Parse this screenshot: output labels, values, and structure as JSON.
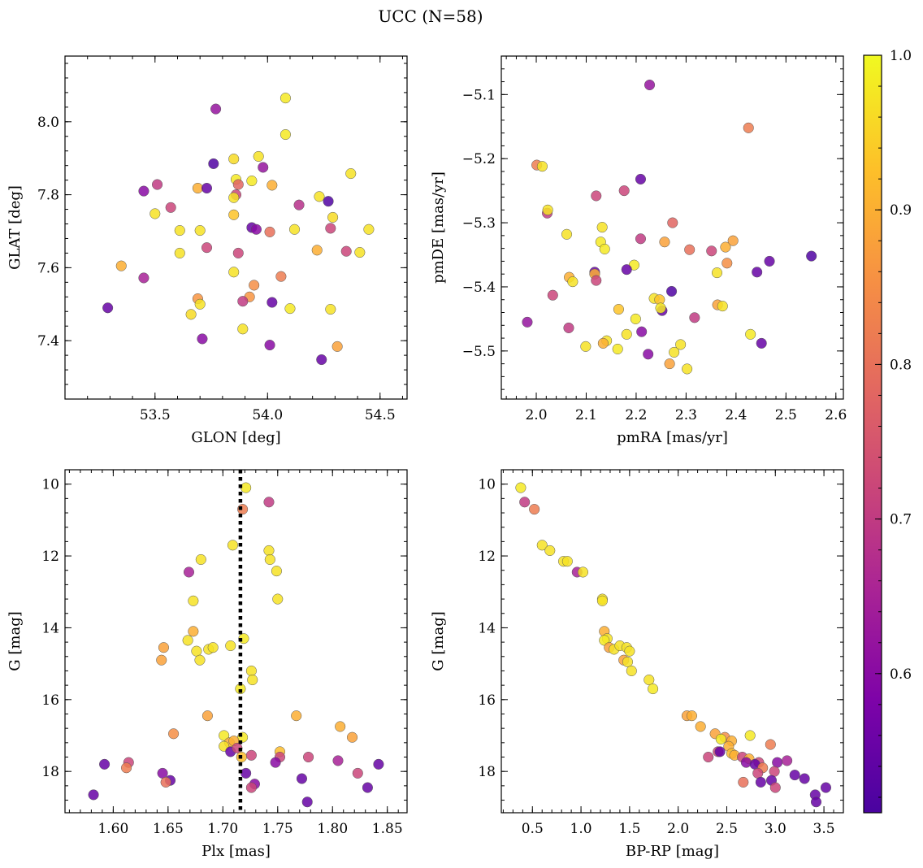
{
  "figure": {
    "suptitle": "UCC (N=58)"
  },
  "chart_data": [
    {
      "type": "scatter",
      "id": "sky",
      "xlabel": "GLON [deg]",
      "ylabel": "GLAT [deg]",
      "xlim": [
        53.1,
        54.62
      ],
      "ylim": [
        7.24,
        8.18
      ],
      "xticks": [
        53.5,
        54.0,
        54.5
      ],
      "xtick_labels": [
        "53.5",
        "54.0",
        "54.5"
      ],
      "xminor": 0.1,
      "yticks": [
        7.4,
        7.6,
        7.8,
        8.0
      ],
      "ytick_labels": [
        "7.4",
        "7.6",
        "7.8",
        "8.0"
      ],
      "yminor": 0.04,
      "points": [
        [
          53.77,
          8.035,
          0.62
        ],
        [
          54.08,
          8.065,
          0.98
        ],
        [
          54.08,
          7.965,
          0.98
        ],
        [
          53.96,
          7.905,
          0.97
        ],
        [
          53.85,
          7.898,
          0.96
        ],
        [
          53.76,
          7.885,
          0.52
        ],
        [
          53.98,
          7.875,
          0.62
        ],
        [
          54.37,
          7.858,
          0.97
        ],
        [
          53.86,
          7.842,
          0.98
        ],
        [
          53.93,
          7.838,
          0.98
        ],
        [
          53.51,
          7.828,
          0.7
        ],
        [
          53.87,
          7.828,
          0.78
        ],
        [
          54.02,
          7.826,
          0.9
        ],
        [
          53.69,
          7.818,
          0.9
        ],
        [
          53.73,
          7.818,
          0.55
        ],
        [
          53.45,
          7.81,
          0.6
        ],
        [
          53.86,
          7.8,
          0.72
        ],
        [
          53.85,
          7.792,
          0.97
        ],
        [
          54.23,
          7.795,
          0.97
        ],
        [
          54.27,
          7.782,
          0.52
        ],
        [
          54.14,
          7.772,
          0.68
        ],
        [
          53.57,
          7.765,
          0.72
        ],
        [
          53.5,
          7.748,
          0.97
        ],
        [
          53.85,
          7.745,
          0.93
        ],
        [
          54.29,
          7.738,
          0.96
        ],
        [
          53.93,
          7.71,
          0.55
        ],
        [
          53.95,
          7.705,
          0.6
        ],
        [
          53.61,
          7.702,
          0.97
        ],
        [
          53.7,
          7.702,
          0.97
        ],
        [
          54.12,
          7.705,
          0.97
        ],
        [
          54.28,
          7.708,
          0.72
        ],
        [
          54.45,
          7.705,
          0.97
        ],
        [
          54.01,
          7.698,
          0.8
        ],
        [
          53.73,
          7.655,
          0.72
        ],
        [
          54.22,
          7.648,
          0.9
        ],
        [
          54.35,
          7.645,
          0.72
        ],
        [
          54.41,
          7.642,
          0.97
        ],
        [
          53.61,
          7.64,
          0.97
        ],
        [
          53.87,
          7.64,
          0.72
        ],
        [
          53.35,
          7.605,
          0.9
        ],
        [
          53.85,
          7.588,
          0.97
        ],
        [
          54.06,
          7.576,
          0.82
        ],
        [
          53.45,
          7.572,
          0.65
        ],
        [
          53.94,
          7.552,
          0.85
        ],
        [
          53.92,
          7.52,
          0.86
        ],
        [
          53.69,
          7.515,
          0.86
        ],
        [
          53.89,
          7.508,
          0.7
        ],
        [
          54.02,
          7.505,
          0.55
        ],
        [
          53.7,
          7.5,
          0.97
        ],
        [
          53.29,
          7.49,
          0.55
        ],
        [
          54.1,
          7.488,
          0.98
        ],
        [
          54.28,
          7.486,
          0.97
        ],
        [
          53.66,
          7.472,
          0.96
        ],
        [
          53.89,
          7.432,
          0.97
        ],
        [
          53.71,
          7.405,
          0.6
        ],
        [
          54.01,
          7.388,
          0.6
        ],
        [
          54.31,
          7.384,
          0.88
        ],
        [
          54.24,
          7.348,
          0.55
        ]
      ]
    },
    {
      "type": "scatter",
      "id": "pm",
      "xlabel": "pmRA [mas/yr]",
      "ylabel": "pmDE [mas/yr]",
      "xlim": [
        1.93,
        2.615
      ],
      "ylim": [
        -5.575,
        -5.04
      ],
      "xticks": [
        2.0,
        2.1,
        2.2,
        2.3,
        2.4,
        2.5,
        2.6
      ],
      "xtick_labels": [
        "2.0",
        "2.1",
        "2.2",
        "2.3",
        "2.4",
        "2.5",
        "2.6"
      ],
      "xminor": 0.02,
      "yticks": [
        -5.5,
        -5.4,
        -5.3,
        -5.2,
        -5.1
      ],
      "ytick_labels": [
        "−5.5",
        "−5.4",
        "−5.3",
        "−5.2",
        "−5.1"
      ],
      "yminor": 0.02,
      "points": [
        [
          2.227,
          -5.085,
          0.62
        ],
        [
          2.425,
          -5.152,
          0.82
        ],
        [
          2.001,
          -5.21,
          0.82
        ],
        [
          2.012,
          -5.212,
          0.97
        ],
        [
          2.209,
          -5.232,
          0.55
        ],
        [
          2.12,
          -5.258,
          0.72
        ],
        [
          2.176,
          -5.25,
          0.72
        ],
        [
          2.022,
          -5.285,
          0.7
        ],
        [
          2.023,
          -5.28,
          0.97
        ],
        [
          2.273,
          -5.3,
          0.78
        ],
        [
          2.132,
          -5.307,
          0.97
        ],
        [
          2.061,
          -5.318,
          0.97
        ],
        [
          2.209,
          -5.325,
          0.7
        ],
        [
          2.257,
          -5.33,
          0.88
        ],
        [
          2.394,
          -5.328,
          0.88
        ],
        [
          2.129,
          -5.33,
          0.98
        ],
        [
          2.137,
          -5.341,
          0.98
        ],
        [
          2.307,
          -5.342,
          0.8
        ],
        [
          2.351,
          -5.344,
          0.72
        ],
        [
          2.379,
          -5.338,
          0.9
        ],
        [
          2.551,
          -5.352,
          0.52
        ],
        [
          2.467,
          -5.36,
          0.55
        ],
        [
          2.382,
          -5.363,
          0.85
        ],
        [
          2.196,
          -5.366,
          0.98
        ],
        [
          2.181,
          -5.373,
          0.55
        ],
        [
          2.117,
          -5.377,
          0.55
        ],
        [
          2.117,
          -5.38,
          0.9
        ],
        [
          2.362,
          -5.378,
          0.97
        ],
        [
          2.442,
          -5.377,
          0.55
        ],
        [
          2.066,
          -5.385,
          0.9
        ],
        [
          2.073,
          -5.392,
          0.97
        ],
        [
          2.12,
          -5.39,
          0.72
        ],
        [
          2.271,
          -5.407,
          0.52
        ],
        [
          2.033,
          -5.413,
          0.72
        ],
        [
          2.236,
          -5.418,
          0.97
        ],
        [
          2.247,
          -5.42,
          0.93
        ],
        [
          2.363,
          -5.428,
          0.88
        ],
        [
          2.373,
          -5.43,
          0.97
        ],
        [
          2.165,
          -5.435,
          0.93
        ],
        [
          2.252,
          -5.437,
          0.55
        ],
        [
          2.249,
          -5.433,
          0.98
        ],
        [
          2.317,
          -5.448,
          0.7
        ],
        [
          2.199,
          -5.45,
          0.98
        ],
        [
          1.982,
          -5.455,
          0.62
        ],
        [
          2.065,
          -5.464,
          0.7
        ],
        [
          2.211,
          -5.47,
          0.6
        ],
        [
          2.181,
          -5.474,
          0.97
        ],
        [
          2.429,
          -5.474,
          0.98
        ],
        [
          2.141,
          -5.484,
          0.97
        ],
        [
          2.134,
          -5.488,
          0.9
        ],
        [
          2.451,
          -5.488,
          0.55
        ],
        [
          2.289,
          -5.49,
          0.97
        ],
        [
          2.099,
          -5.493,
          0.97
        ],
        [
          2.163,
          -5.497,
          0.98
        ],
        [
          2.276,
          -5.502,
          0.97
        ],
        [
          2.224,
          -5.505,
          0.6
        ],
        [
          2.267,
          -5.52,
          0.88
        ],
        [
          2.302,
          -5.528,
          0.97
        ]
      ]
    },
    {
      "type": "scatter",
      "id": "plx",
      "xlabel": "Plx [mas]",
      "ylabel": "G [mag]",
      "xlim": [
        1.556,
        1.868
      ],
      "ylim": [
        19.15,
        9.6
      ],
      "y_inverted": true,
      "xticks": [
        1.6,
        1.65,
        1.7,
        1.75,
        1.8,
        1.85
      ],
      "xtick_labels": [
        "1.60",
        "1.65",
        "1.70",
        "1.75",
        "1.80",
        "1.85"
      ],
      "xminor": 0.01,
      "yticks": [
        10,
        12,
        14,
        16,
        18
      ],
      "ytick_labels": [
        "10",
        "12",
        "14",
        "16",
        "18"
      ],
      "yminor": 0.4,
      "vline": 1.716,
      "points": [
        [
          1.721,
          10.1,
          0.98
        ],
        [
          1.718,
          10.7,
          0.82
        ],
        [
          1.742,
          10.5,
          0.7
        ],
        [
          1.709,
          11.7,
          0.97
        ],
        [
          1.742,
          11.85,
          0.97
        ],
        [
          1.68,
          12.1,
          0.97
        ],
        [
          1.743,
          12.1,
          0.97
        ],
        [
          1.669,
          12.45,
          0.65
        ],
        [
          1.749,
          12.42,
          0.97
        ],
        [
          1.673,
          13.25,
          0.97
        ],
        [
          1.75,
          13.2,
          0.97
        ],
        [
          1.673,
          14.1,
          0.9
        ],
        [
          1.668,
          14.35,
          0.97
        ],
        [
          1.719,
          14.3,
          0.98
        ],
        [
          1.646,
          14.55,
          0.88
        ],
        [
          1.676,
          14.65,
          0.97
        ],
        [
          1.687,
          14.6,
          0.97
        ],
        [
          1.691,
          14.55,
          0.97
        ],
        [
          1.707,
          14.5,
          0.97
        ],
        [
          1.644,
          14.9,
          0.88
        ],
        [
          1.679,
          14.9,
          0.97
        ],
        [
          1.726,
          15.2,
          0.97
        ],
        [
          1.727,
          15.45,
          0.97
        ],
        [
          1.716,
          15.7,
          0.98
        ],
        [
          1.686,
          16.45,
          0.88
        ],
        [
          1.767,
          16.45,
          0.9
        ],
        [
          1.807,
          16.75,
          0.9
        ],
        [
          1.655,
          16.95,
          0.85
        ],
        [
          1.701,
          17.0,
          0.98
        ],
        [
          1.818,
          17.05,
          0.88
        ],
        [
          1.718,
          17.05,
          0.98
        ],
        [
          1.706,
          17.2,
          0.9
        ],
        [
          1.71,
          17.15,
          0.9
        ],
        [
          1.701,
          17.3,
          0.97
        ],
        [
          1.752,
          17.45,
          0.92
        ],
        [
          1.707,
          17.45,
          0.55
        ],
        [
          1.713,
          17.35,
          0.72
        ],
        [
          1.726,
          17.55,
          0.72
        ],
        [
          1.717,
          17.6,
          0.92
        ],
        [
          1.752,
          17.6,
          0.72
        ],
        [
          1.778,
          17.6,
          0.72
        ],
        [
          1.614,
          17.75,
          0.72
        ],
        [
          1.592,
          17.8,
          0.55
        ],
        [
          1.748,
          17.75,
          0.6
        ],
        [
          1.805,
          17.7,
          0.65
        ],
        [
          1.842,
          17.8,
          0.55
        ],
        [
          1.612,
          17.9,
          0.82
        ],
        [
          1.645,
          18.05,
          0.6
        ],
        [
          1.721,
          18.05,
          0.55
        ],
        [
          1.823,
          18.05,
          0.72
        ],
        [
          1.652,
          18.25,
          0.55
        ],
        [
          1.648,
          18.3,
          0.8
        ],
        [
          1.772,
          18.2,
          0.55
        ],
        [
          1.729,
          18.35,
          0.6
        ],
        [
          1.726,
          18.45,
          0.72
        ],
        [
          1.832,
          18.45,
          0.55
        ],
        [
          1.582,
          18.65,
          0.55
        ],
        [
          1.777,
          18.85,
          0.55
        ]
      ]
    },
    {
      "type": "scatter",
      "id": "cmd",
      "xlabel": "BP-RP [mag]",
      "ylabel": "G [mag]",
      "xlim": [
        0.18,
        3.7
      ],
      "ylim": [
        19.15,
        9.6
      ],
      "y_inverted": true,
      "xticks": [
        0.5,
        1.0,
        1.5,
        2.0,
        2.5,
        3.0,
        3.5
      ],
      "xtick_labels": [
        "0.5",
        "1.0",
        "1.5",
        "2.0",
        "2.5",
        "3.0",
        "3.5"
      ],
      "xminor": 0.1,
      "yticks": [
        10,
        12,
        14,
        16,
        18
      ],
      "ytick_labels": [
        "10",
        "12",
        "14",
        "16",
        "18"
      ],
      "yminor": 0.4,
      "points": [
        [
          0.38,
          10.1,
          0.98
        ],
        [
          0.42,
          10.5,
          0.7
        ],
        [
          0.52,
          10.7,
          0.82
        ],
        [
          0.6,
          11.7,
          0.97
        ],
        [
          0.68,
          11.85,
          0.97
        ],
        [
          0.82,
          12.15,
          0.97
        ],
        [
          0.86,
          12.15,
          0.97
        ],
        [
          0.96,
          12.45,
          0.65
        ],
        [
          1.02,
          12.45,
          0.97
        ],
        [
          1.22,
          13.2,
          0.97
        ],
        [
          1.22,
          13.25,
          0.97
        ],
        [
          1.24,
          14.1,
          0.9
        ],
        [
          1.27,
          14.3,
          0.97
        ],
        [
          1.24,
          14.35,
          0.98
        ],
        [
          1.29,
          14.55,
          0.88
        ],
        [
          1.34,
          14.6,
          0.97
        ],
        [
          1.4,
          14.5,
          0.97
        ],
        [
          1.47,
          14.55,
          0.97
        ],
        [
          1.5,
          14.65,
          0.97
        ],
        [
          1.44,
          14.9,
          0.88
        ],
        [
          1.48,
          14.95,
          0.97
        ],
        [
          1.52,
          15.2,
          0.97
        ],
        [
          1.7,
          15.45,
          0.97
        ],
        [
          1.74,
          15.7,
          0.98
        ],
        [
          2.09,
          16.45,
          0.88
        ],
        [
          2.14,
          16.45,
          0.9
        ],
        [
          2.23,
          16.75,
          0.9
        ],
        [
          2.38,
          16.95,
          0.88
        ],
        [
          2.74,
          17.0,
          0.98
        ],
        [
          2.48,
          17.05,
          0.85
        ],
        [
          2.44,
          17.1,
          0.98
        ],
        [
          2.55,
          17.15,
          0.9
        ],
        [
          2.52,
          17.3,
          0.9
        ],
        [
          2.95,
          17.25,
          0.82
        ],
        [
          2.41,
          17.45,
          0.72
        ],
        [
          2.43,
          17.45,
          0.55
        ],
        [
          2.55,
          17.5,
          0.92
        ],
        [
          2.58,
          17.55,
          0.9
        ],
        [
          2.31,
          17.6,
          0.72
        ],
        [
          2.66,
          17.6,
          0.72
        ],
        [
          2.73,
          17.65,
          0.9
        ],
        [
          2.7,
          17.75,
          0.6
        ],
        [
          2.83,
          17.75,
          0.72
        ],
        [
          2.79,
          17.8,
          0.55
        ],
        [
          3.02,
          17.75,
          0.6
        ],
        [
          3.12,
          17.7,
          0.65
        ],
        [
          2.87,
          17.9,
          0.82
        ],
        [
          2.99,
          18.0,
          0.72
        ],
        [
          2.82,
          18.05,
          0.72
        ],
        [
          3.2,
          18.1,
          0.55
        ],
        [
          3.3,
          18.2,
          0.55
        ],
        [
          2.96,
          18.25,
          0.55
        ],
        [
          2.85,
          18.3,
          0.55
        ],
        [
          2.67,
          18.3,
          0.8
        ],
        [
          3.0,
          18.45,
          0.72
        ],
        [
          3.52,
          18.45,
          0.55
        ],
        [
          3.41,
          18.65,
          0.55
        ],
        [
          3.42,
          18.85,
          0.55
        ]
      ]
    }
  ],
  "colorbar": {
    "colormap": "plasma",
    "vmin": 0.51,
    "vmax": 1.0,
    "ticks": [
      0.6,
      0.7,
      0.8,
      0.9,
      1.0
    ],
    "tick_labels": [
      "0.6",
      "0.7",
      "0.8",
      "0.9",
      "1.0"
    ],
    "minor": 0.02
  }
}
